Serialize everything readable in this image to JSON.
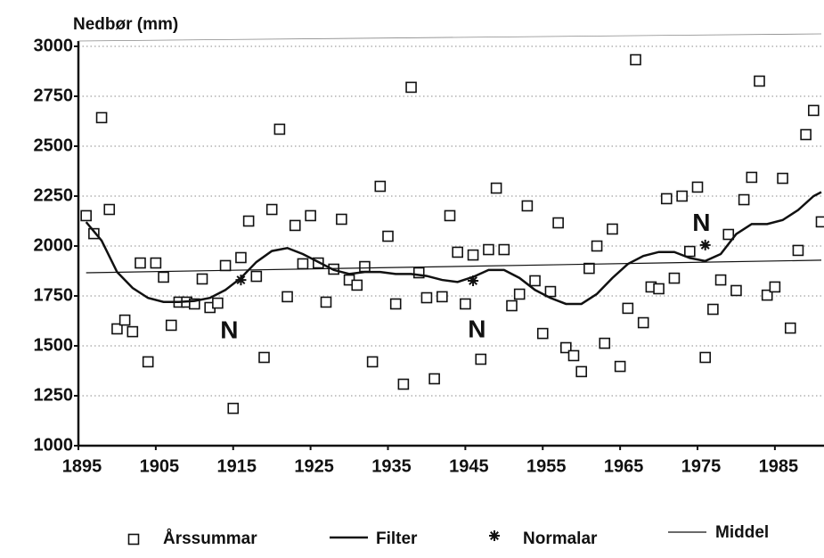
{
  "chart_data": {
    "type": "scatter",
    "ylabel": "Nedbør (mm)",
    "xlim": [
      1895,
      1991
    ],
    "ylim": [
      1000,
      3000
    ],
    "xticks": [
      1895,
      1905,
      1915,
      1925,
      1935,
      1945,
      1955,
      1965,
      1975,
      1985
    ],
    "yticks": [
      1000,
      1250,
      1500,
      1750,
      2000,
      2250,
      2500,
      2750,
      3000
    ],
    "grid": true,
    "legend": "bottom",
    "series": [
      {
        "name": "Årssummar",
        "type": "scatter",
        "marker": "square",
        "color": "#111111",
        "x": [
          1896,
          1897,
          1898,
          1899,
          1900,
          1901,
          1902,
          1903,
          1904,
          1905,
          1906,
          1907,
          1908,
          1909,
          1910,
          1911,
          1912,
          1913,
          1914,
          1915,
          1916,
          1917,
          1918,
          1919,
          1920,
          1921,
          1922,
          1923,
          1924,
          1925,
          1926,
          1927,
          1928,
          1929,
          1930,
          1931,
          1932,
          1933,
          1934,
          1935,
          1936,
          1937,
          1938,
          1939,
          1940,
          1941,
          1942,
          1943,
          1944,
          1945,
          1946,
          1947,
          1948,
          1949,
          1950,
          1951,
          1952,
          1953,
          1954,
          1955,
          1956,
          1957,
          1958,
          1959,
          1960,
          1961,
          1962,
          1963,
          1964,
          1965,
          1966,
          1967,
          1968,
          1969,
          1970,
          1971,
          1972,
          1973,
          1974,
          1975,
          1976,
          1977,
          1978,
          1979,
          1980,
          1981,
          1982,
          1983,
          1984,
          1985,
          1986,
          1987,
          1988,
          1989,
          1990,
          1991
        ],
        "values": [
          2152,
          2062,
          2643,
          2183,
          1585,
          1629,
          1571,
          1915,
          1420,
          1915,
          1844,
          1603,
          1719,
          1719,
          1710,
          1835,
          1692,
          1714,
          1902,
          1187,
          1942,
          2125,
          1848,
          1442,
          2183,
          2585,
          1746,
          2103,
          1911,
          2152,
          1915,
          1719,
          1884,
          2134,
          1830,
          1804,
          1897,
          1420,
          2299,
          2049,
          1710,
          1308,
          2795,
          1866,
          1741,
          1335,
          1746,
          2152,
          1969,
          1710,
          1955,
          1433,
          1982,
          2290,
          1982,
          1701,
          1759,
          2201,
          1826,
          1562,
          1772,
          2116,
          1491,
          1451,
          1371,
          1888,
          2000,
          1513,
          2085,
          1397,
          1688,
          2933,
          1616,
          1795,
          1786,
          2237,
          1839,
          2250,
          1973,
          2295,
          1442,
          1683,
          1830,
          2058,
          1777,
          2232,
          2344,
          2826,
          1754,
          1795,
          2339,
          1589,
          1978,
          2558,
          2679,
          2121
        ]
      },
      {
        "name": "Filter",
        "type": "line",
        "linewidth": 2.5,
        "color": "#111111",
        "x": [
          1896,
          1898,
          1900,
          1902,
          1904,
          1906,
          1908,
          1910,
          1912,
          1914,
          1916,
          1918,
          1920,
          1922,
          1924,
          1926,
          1928,
          1930,
          1932,
          1934,
          1936,
          1938,
          1940,
          1942,
          1944,
          1946,
          1948,
          1950,
          1952,
          1954,
          1956,
          1958,
          1960,
          1962,
          1964,
          1966,
          1968,
          1970,
          1972,
          1974,
          1976,
          1978,
          1980,
          1982,
          1984,
          1986,
          1988,
          1990,
          1991
        ],
        "values": [
          2120,
          2027,
          1870,
          1790,
          1740,
          1720,
          1720,
          1725,
          1740,
          1780,
          1840,
          1920,
          1975,
          1990,
          1960,
          1920,
          1880,
          1860,
          1870,
          1870,
          1860,
          1860,
          1850,
          1830,
          1820,
          1845,
          1880,
          1880,
          1840,
          1780,
          1740,
          1710,
          1710,
          1760,
          1840,
          1910,
          1950,
          1970,
          1970,
          1940,
          1925,
          1960,
          2060,
          2110,
          2110,
          2130,
          2180,
          2250,
          2270
        ]
      },
      {
        "name": "Normalar",
        "type": "scatter",
        "marker": "star",
        "color": "#111111",
        "x": [
          1916,
          1946,
          1976
        ],
        "values": [
          1830,
          1826,
          2005
        ]
      },
      {
        "name": "Middel",
        "type": "line",
        "linewidth": 1.2,
        "color": "#111111",
        "x": [
          1896,
          1991
        ],
        "values": [
          1866,
          1929
        ]
      }
    ],
    "annotations": [
      {
        "text": "N",
        "x": 1914.5,
        "y": 1570
      },
      {
        "text": "N",
        "x": 1946.5,
        "y": 1575
      },
      {
        "text": "N",
        "x": 1975.5,
        "y": 2110
      }
    ]
  }
}
